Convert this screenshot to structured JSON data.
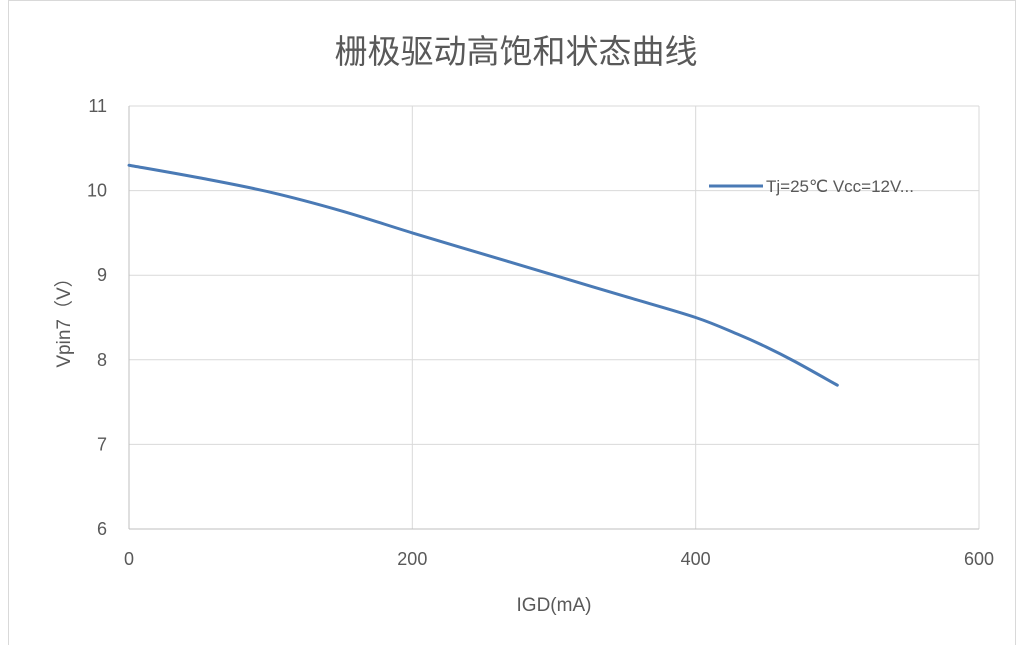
{
  "chart_data": {
    "type": "line",
    "title": "栅极驱动高饱和状态曲线",
    "xlabel": "IGD(mA)",
    "ylabel": "Vpin7（V）",
    "xlim": [
      0,
      600
    ],
    "ylim": [
      6,
      11
    ],
    "x_ticks": [
      "0",
      "200",
      "400",
      "600"
    ],
    "y_ticks": [
      "6",
      "7",
      "8",
      "9",
      "10",
      "11"
    ],
    "grid": true,
    "legend_position": "right",
    "series": [
      {
        "name": "Tj=25℃  Vcc=12V...",
        "color": "#4a7ab5",
        "x": [
          0,
          50,
          100,
          150,
          200,
          250,
          300,
          350,
          400,
          430,
          450,
          470,
          500
        ],
        "y": [
          10.3,
          10.15,
          9.98,
          9.76,
          9.5,
          9.25,
          9.0,
          8.75,
          8.5,
          8.3,
          8.15,
          7.98,
          7.7
        ]
      }
    ]
  }
}
